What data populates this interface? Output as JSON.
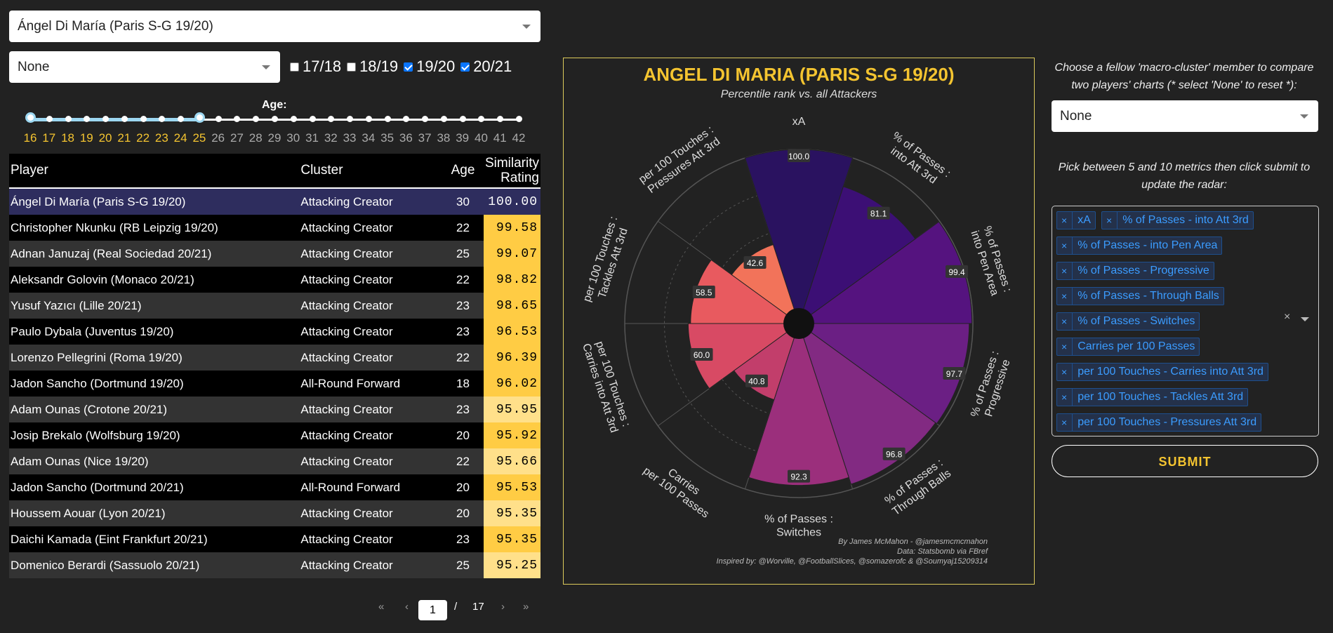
{
  "player_select": {
    "value": "Ángel Di María (Paris S-G 19/20)"
  },
  "cluster_select": {
    "value": "None"
  },
  "seasons": [
    {
      "label": "17/18",
      "checked": false
    },
    {
      "label": "18/19",
      "checked": false
    },
    {
      "label": "19/20",
      "checked": true
    },
    {
      "label": "20/21",
      "checked": true
    }
  ],
  "age_slider": {
    "label": "Age:",
    "ticks": [
      "16",
      "17",
      "18",
      "19",
      "20",
      "21",
      "22",
      "23",
      "24",
      "25",
      "26",
      "27",
      "28",
      "29",
      "30",
      "31",
      "32",
      "33",
      "34",
      "35",
      "36",
      "37",
      "38",
      "39",
      "40",
      "41",
      "42"
    ],
    "min": 16,
    "max": 42,
    "selected": [
      16,
      25
    ],
    "active_color": "#f4c430",
    "inactive_color": "#aaaaaa"
  },
  "table": {
    "headers": {
      "player": "Player",
      "cluster": "Cluster",
      "age": "Age",
      "rating_line1": "Similarity",
      "rating_line2": "Rating"
    },
    "rows": [
      {
        "player": "Ángel Di María (Paris S-G 19/20)",
        "cluster": "Attacking Creator",
        "age": "30",
        "rating": "100.00"
      },
      {
        "player": "Christopher Nkunku (RB Leipzig 19/20)",
        "cluster": "Attacking Creator",
        "age": "22",
        "rating": "99.58"
      },
      {
        "player": "Adnan Januzaj (Real Sociedad 20/21)",
        "cluster": "Attacking Creator",
        "age": "25",
        "rating": "99.07"
      },
      {
        "player": "Aleksandr Golovin (Monaco 20/21)",
        "cluster": "Attacking Creator",
        "age": "22",
        "rating": "98.82"
      },
      {
        "player": "Yusuf Yazıcı (Lille 20/21)",
        "cluster": "Attacking Creator",
        "age": "23",
        "rating": "98.65"
      },
      {
        "player": "Paulo Dybala (Juventus 19/20)",
        "cluster": "Attacking Creator",
        "age": "23",
        "rating": "96.53"
      },
      {
        "player": "Lorenzo Pellegrini (Roma 19/20)",
        "cluster": "Attacking Creator",
        "age": "22",
        "rating": "96.39"
      },
      {
        "player": "Jadon Sancho (Dortmund 19/20)",
        "cluster": "All-Round Forward",
        "age": "18",
        "rating": "96.02"
      },
      {
        "player": "Adam Ounas (Crotone 20/21)",
        "cluster": "Attacking Creator",
        "age": "23",
        "rating": "95.95"
      },
      {
        "player": "Josip Brekalo (Wolfsburg 19/20)",
        "cluster": "Attacking Creator",
        "age": "20",
        "rating": "95.92"
      },
      {
        "player": "Adam Ounas (Nice 19/20)",
        "cluster": "Attacking Creator",
        "age": "22",
        "rating": "95.66"
      },
      {
        "player": "Jadon Sancho (Dortmund 20/21)",
        "cluster": "All-Round Forward",
        "age": "20",
        "rating": "95.53"
      },
      {
        "player": "Houssem Aouar (Lyon 20/21)",
        "cluster": "Attacking Creator",
        "age": "20",
        "rating": "95.35"
      },
      {
        "player": "Daichi Kamada (Eint Frankfurt 20/21)",
        "cluster": "Attacking Creator",
        "age": "23",
        "rating": "95.35"
      },
      {
        "player": "Domenico Berardi (Sassuolo 20/21)",
        "cluster": "Attacking Creator",
        "age": "25",
        "rating": "95.25"
      }
    ],
    "rating_colors": [
      "#ffcc44",
      "#ffe08a"
    ]
  },
  "pagination": {
    "first": "«",
    "prev": "‹",
    "current": "1",
    "sep": "/",
    "total": "17",
    "next": "›",
    "last": "»"
  },
  "chart_data": {
    "type": "radar",
    "title": "ANGEL DI MARIA (PARIS S-G 19/20)",
    "subtitle": "Percentile rank vs. all Attackers",
    "categories": [
      "xA",
      "% of Passes :\ninto Att 3rd",
      "% of Passes :\ninto Pen Area",
      "% of Passes :\nProgressive",
      "% of Passes :\nThrough Balls",
      "% of Passes :\nSwitches",
      "Carries\nper 100 Passes",
      "per 100 Touches :\nCarries into Att 3rd",
      "per 100 Touches :\nTackles Att 3rd",
      "per 100 Touches :\nPressures Att 3rd"
    ],
    "values": [
      100.0,
      81.1,
      99.4,
      97.7,
      96.8,
      92.3,
      40.8,
      60.0,
      58.5,
      42.6
    ],
    "value_labels": [
      "100.0",
      "81.1",
      "99.4",
      "97.7",
      "96.8",
      "92.3",
      "40.8",
      "60.0",
      "58.5",
      "42.6"
    ],
    "ylim": [
      0,
      100
    ],
    "colors": [
      "#2a1260",
      "#3c0f75",
      "#55137f",
      "#6b1f84",
      "#822a82",
      "#9b2f7c",
      "#c23e6b",
      "#d84a64",
      "#e85a5f",
      "#f2735a"
    ],
    "credits": [
      "By James McMahon - @jamesmcmcmahon",
      "Data: Statsbomb via FBref",
      "Inspired by: @Worville, @FootballSlices, @somazerofc & @Soumyaj15209314"
    ],
    "title_color": "#f4c430"
  },
  "right_panel": {
    "intro": "Choose a fellow 'macro-cluster' member to compare two players' charts (* select 'None' to reset *):",
    "compare_value": "None",
    "pick_text": "Pick between 5 and 10 metrics then click submit to update the radar:",
    "metrics": [
      "xA",
      "% of Passes - into Att 3rd",
      "% of Passes - into Pen Area",
      "% of Passes - Progressive",
      "% of Passes - Through Balls",
      "% of Passes - Switches",
      "Carries per 100 Passes",
      "per 100 Touches - Carries into Att 3rd",
      "per 100 Touches - Tackles Att 3rd",
      "per 100 Touches - Pressures Att 3rd"
    ],
    "remove_glyph": "×",
    "clear_glyph": "×",
    "submit_label": "SUBMIT"
  }
}
